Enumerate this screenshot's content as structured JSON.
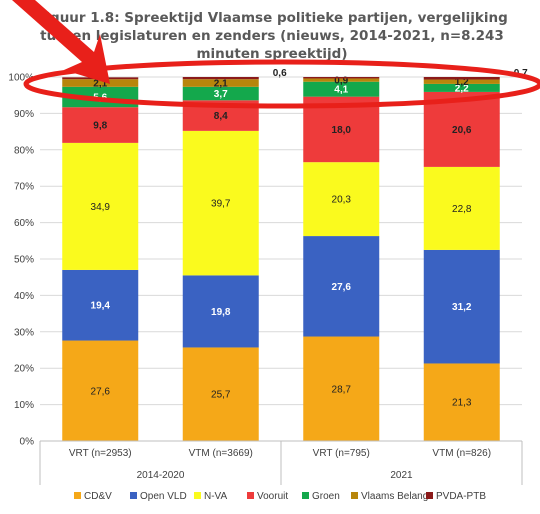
{
  "chart_data": {
    "type": "bar",
    "stacked": true,
    "title_lines": [
      "Figuur 1.8: Spreektijd Vlaamse politieke partijen, vergelijking",
      "tussen legislaturen en zenders (nieuws, 2014-2021, n=8.243",
      "minuten spreektijd)"
    ],
    "categories": [
      "VRT (n=2953)",
      "VTM (n=3669)",
      "VRT (n=795)",
      "VTM (n=826)"
    ],
    "groups": [
      {
        "label": "2014-2020",
        "members": [
          0,
          1
        ]
      },
      {
        "label": "2021",
        "members": [
          2,
          3
        ]
      }
    ],
    "ylim": [
      0,
      100
    ],
    "yticks": [
      "0%",
      "10%",
      "20%",
      "30%",
      "40%",
      "50%",
      "60%",
      "70%",
      "80%",
      "90%",
      "100%"
    ],
    "series": [
      {
        "name": "CD&V",
        "color": "#F5A818",
        "values": [
          27.6,
          25.7,
          28.7,
          21.3
        ],
        "labels": [
          "27,6",
          "25,7",
          "28,7",
          "21,3"
        ]
      },
      {
        "name": "Open VLD",
        "color": "#3A62C2",
        "values": [
          19.4,
          19.8,
          27.6,
          31.2
        ],
        "labels": [
          "19,4",
          "19,8",
          "27,6",
          "31,2"
        ]
      },
      {
        "name": "N-VA",
        "color": "#FAFA1E",
        "values": [
          34.9,
          39.7,
          20.3,
          22.8
        ],
        "labels": [
          "34,9",
          "39,7",
          "20,3",
          "22,8"
        ]
      },
      {
        "name": "Vooruit",
        "color": "#EE3B3B",
        "values": [
          9.8,
          8.4,
          18.0,
          20.6
        ],
        "labels": [
          "9,8",
          "8,4",
          "18,0",
          "20,6"
        ]
      },
      {
        "name": "Groen",
        "color": "#14A84C",
        "values": [
          5.6,
          3.7,
          4.1,
          2.2
        ],
        "labels": [
          "5,6",
          "3,7",
          "4,1",
          "2,2"
        ]
      },
      {
        "name": "Vlaams Belang",
        "color": "#B8860B",
        "values": [
          2.1,
          2.1,
          0.9,
          1.2
        ],
        "labels": [
          "2,1",
          "2,1",
          "0,9",
          "1,2"
        ]
      },
      {
        "name": "PVDA-PTB",
        "color": "#8B1A1A",
        "values": [
          0.5,
          0.6,
          0.4,
          0.7
        ],
        "labels": [
          "",
          "0,6",
          "",
          "0,7"
        ]
      }
    ],
    "annotation": {
      "type": "ellipse",
      "color": "#E8201A",
      "description": "red ellipse and arrow highlighting the top of the bars"
    },
    "legend_position": "bottom",
    "grid": true
  }
}
